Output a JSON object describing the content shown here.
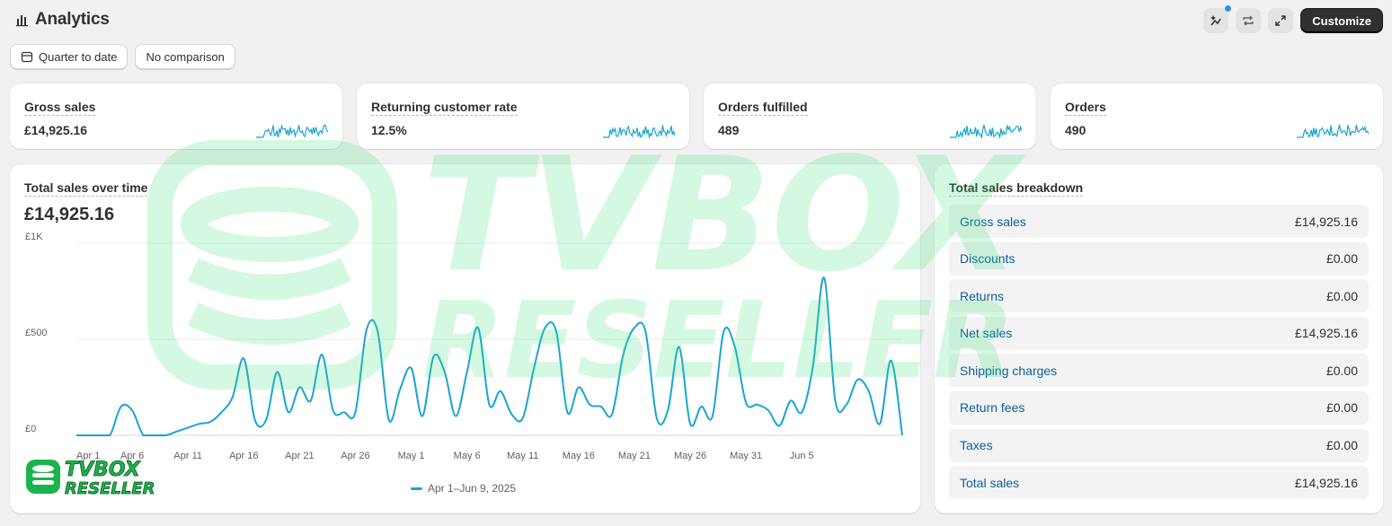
{
  "header": {
    "title": "Analytics",
    "customize_label": "Customize"
  },
  "filters": {
    "date_range": "Quarter to date",
    "comparison": "No comparison"
  },
  "metrics": [
    {
      "label": "Gross sales",
      "value": "£14,925.16"
    },
    {
      "label": "Returning customer rate",
      "value": "12.5%"
    },
    {
      "label": "Orders fulfilled",
      "value": "489"
    },
    {
      "label": "Orders",
      "value": "490"
    }
  ],
  "sales_chart": {
    "title": "Total sales over time",
    "total": "£14,925.16",
    "legend": "Apr 1–Jun 9, 2025"
  },
  "chart_data": {
    "type": "line",
    "title": "Total sales over time",
    "y_ticks": [
      "£0",
      "£500",
      "£1K"
    ],
    "ylim": [
      0,
      1000
    ],
    "x_tick_labels": [
      "Apr 1",
      "Apr 6",
      "Apr 11",
      "Apr 16",
      "Apr 21",
      "Apr 26",
      "May 1",
      "May 6",
      "May 11",
      "May 16",
      "May 21",
      "May 26",
      "May 31",
      "Jun 5"
    ],
    "series": [
      {
        "name": "Apr 1–Jun 9, 2025",
        "color": "#1aa5cf",
        "values": [
          0,
          0,
          0,
          0,
          150,
          130,
          0,
          0,
          0,
          20,
          40,
          60,
          70,
          120,
          200,
          400,
          80,
          80,
          330,
          120,
          250,
          180,
          420,
          130,
          120,
          120,
          550,
          540,
          80,
          240,
          350,
          100,
          410,
          330,
          100,
          330,
          560,
          160,
          230,
          110,
          90,
          350,
          560,
          540,
          120,
          250,
          160,
          150,
          110,
          420,
          560,
          540,
          90,
          130,
          460,
          60,
          150,
          100,
          540,
          460,
          170,
          160,
          130,
          50,
          180,
          120,
          360,
          820,
          180,
          160,
          290,
          230,
          60,
          390,
          0
        ]
      }
    ],
    "grid": true,
    "legend_position": "bottom"
  },
  "breakdown": {
    "title": "Total sales breakdown",
    "rows": [
      {
        "label": "Gross sales",
        "value": "£14,925.16"
      },
      {
        "label": "Discounts",
        "value": "£0.00"
      },
      {
        "label": "Returns",
        "value": "£0.00"
      },
      {
        "label": "Net sales",
        "value": "£14,925.16"
      },
      {
        "label": "Shipping charges",
        "value": "£0.00"
      },
      {
        "label": "Return fees",
        "value": "£0.00"
      },
      {
        "label": "Taxes",
        "value": "£0.00"
      },
      {
        "label": "Total sales",
        "value": "£14,925.16"
      }
    ]
  },
  "watermark": {
    "line1": "TVBOX",
    "line2": "RESELLER"
  },
  "colors": {
    "accent": "#1aa5cf",
    "link": "#0b5f9e",
    "watermark": "#3fe07a"
  }
}
